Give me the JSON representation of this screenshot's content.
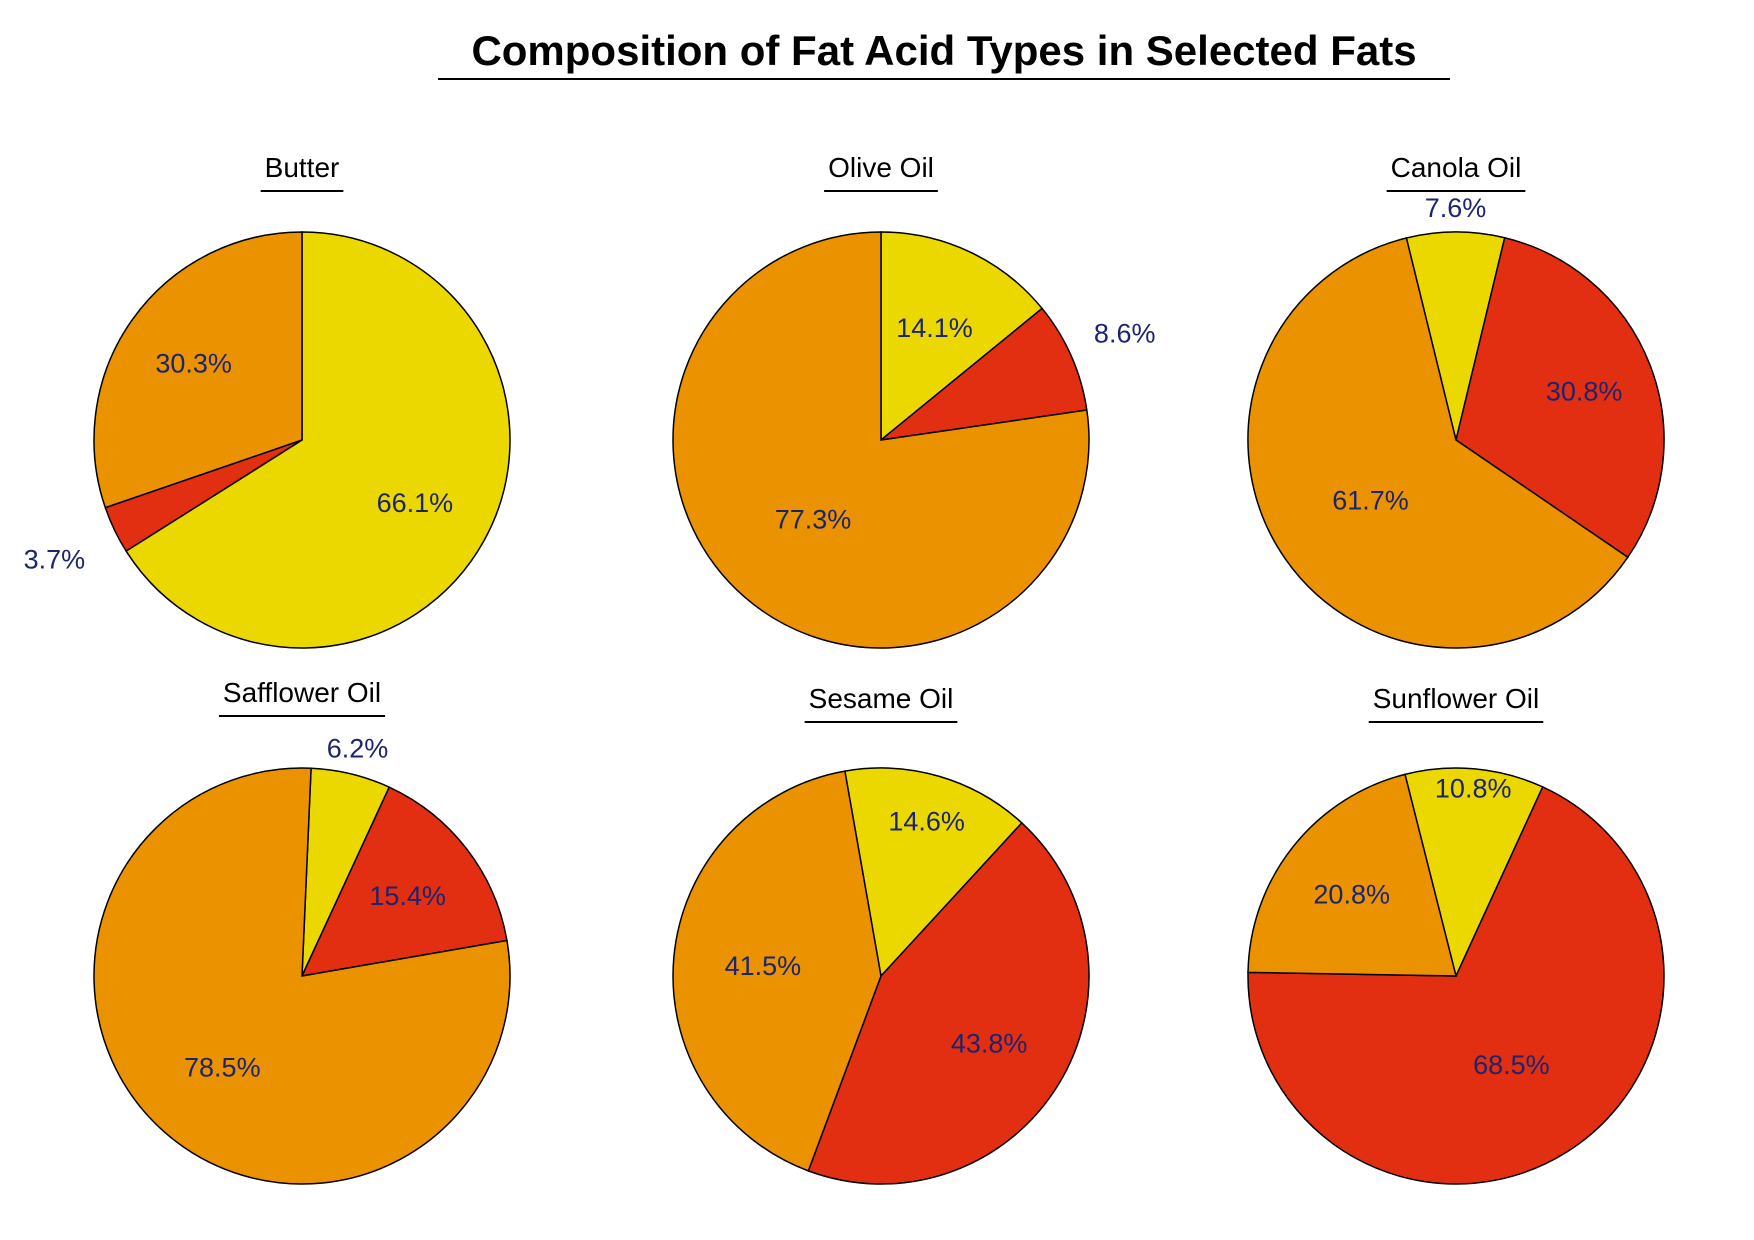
{
  "title": "Composition of Fat Acid Types in Selected Fats",
  "colors": {
    "yellow": "#EAD800",
    "red": "#E22F12",
    "orange": "#EB9200",
    "label_text": "#1c2470"
  },
  "chart_data": [
    {
      "type": "pie",
      "title": "Butter",
      "slices": [
        {
          "color": "yellow",
          "value": 66.1,
          "label": "66.1%"
        },
        {
          "color": "red",
          "value": 3.7,
          "label": "3.7%"
        },
        {
          "color": "orange",
          "value": 30.3,
          "label": "30.3%"
        }
      ]
    },
    {
      "type": "pie",
      "title": "Olive Oil",
      "slices": [
        {
          "color": "yellow",
          "value": 14.1,
          "label": "14.1%"
        },
        {
          "color": "red",
          "value": 8.6,
          "label": "8.6%"
        },
        {
          "color": "orange",
          "value": 77.3,
          "label": "77.3%"
        }
      ]
    },
    {
      "type": "pie",
      "title": "Canola Oil",
      "slices": [
        {
          "color": "yellow",
          "value": 7.6,
          "label": "7.6%"
        },
        {
          "color": "red",
          "value": 30.8,
          "label": "30.8%"
        },
        {
          "color": "orange",
          "value": 61.7,
          "label": "61.7%"
        }
      ]
    },
    {
      "type": "pie",
      "title": "Safflower Oil",
      "slices": [
        {
          "color": "yellow",
          "value": 6.2,
          "label": "6.2%"
        },
        {
          "color": "red",
          "value": 15.4,
          "label": "15.4%"
        },
        {
          "color": "orange",
          "value": 78.5,
          "label": "78.5%"
        }
      ]
    },
    {
      "type": "pie",
      "title": "Sesame Oil",
      "slices": [
        {
          "color": "yellow",
          "value": 14.6,
          "label": "14.6%"
        },
        {
          "color": "red",
          "value": 43.8,
          "label": "43.8%"
        },
        {
          "color": "orange",
          "value": 41.5,
          "label": "41.5%"
        }
      ]
    },
    {
      "type": "pie",
      "title": "Sunflower Oil",
      "slices": [
        {
          "color": "yellow",
          "value": 10.8,
          "label": "10.8%"
        },
        {
          "color": "red",
          "value": 68.5,
          "label": "68.5%"
        },
        {
          "color": "orange",
          "value": 20.8,
          "label": "20.8%"
        }
      ]
    }
  ]
}
